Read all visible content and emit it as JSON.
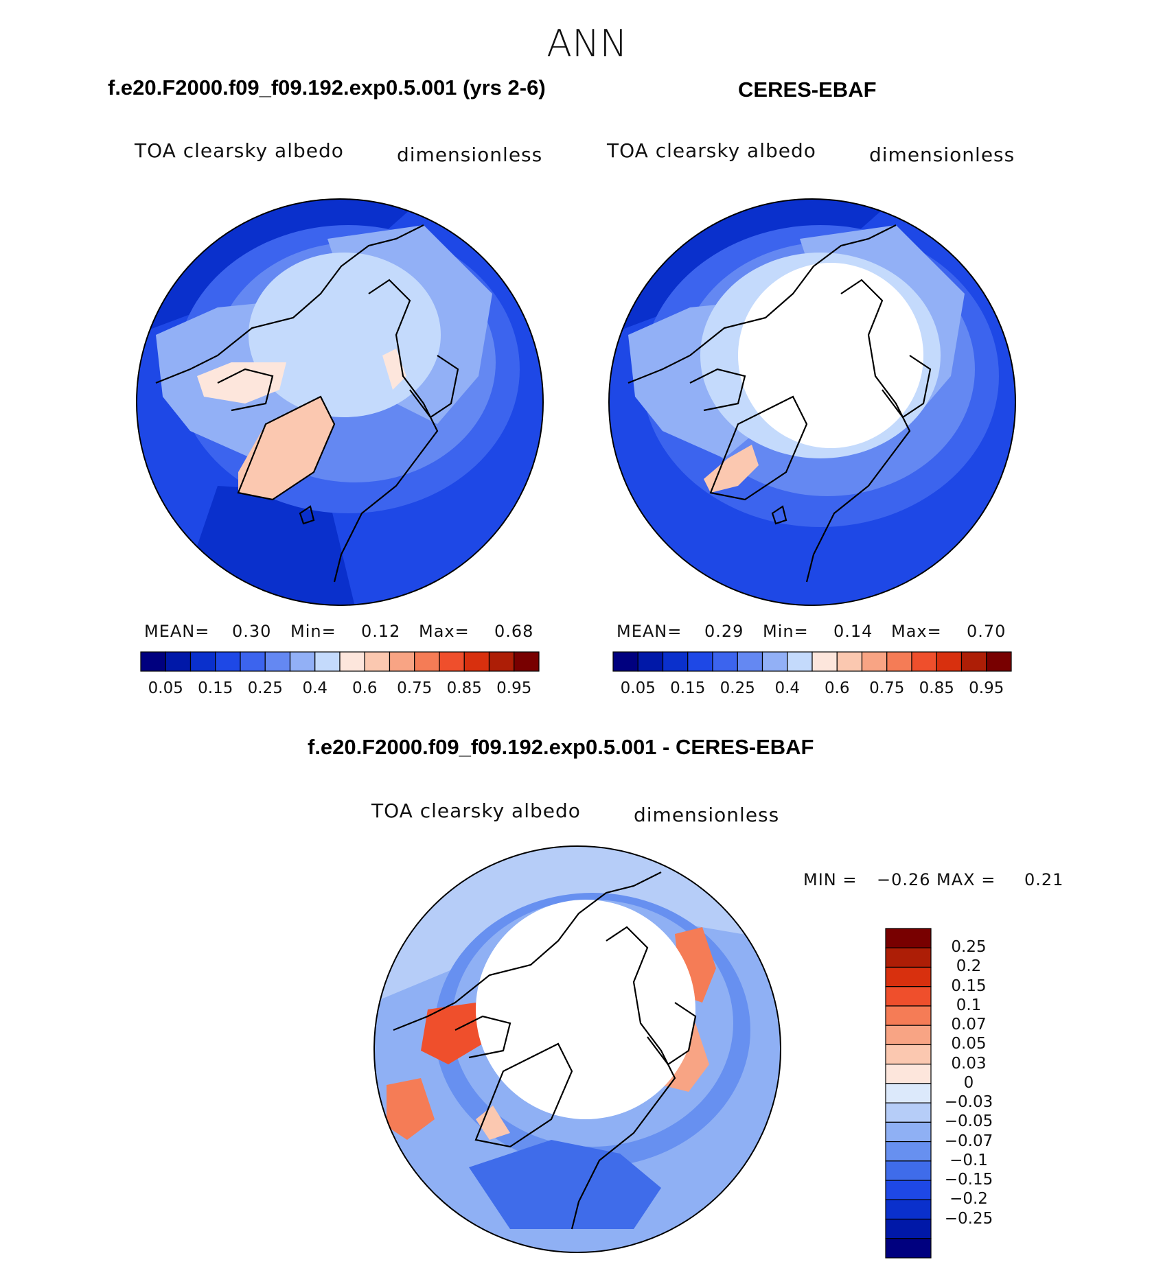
{
  "season": "ANN",
  "panels": [
    {
      "case": "f.e20.F2000.f09_f09.192.exp0.5.001 (yrs 2-6)",
      "variable": "TOA clearsky albedo",
      "units": "dimensionless",
      "stats": {
        "mean_label": "MEAN=",
        "mean": "0.30",
        "min_label": "Min=",
        "min": "0.12",
        "max_label": "Max=",
        "max": "0.68"
      }
    },
    {
      "case": "CERES-EBAF",
      "variable": "TOA clearsky albedo",
      "units": "dimensionless",
      "stats": {
        "mean_label": "MEAN=",
        "mean": "0.29",
        "min_label": "Min=",
        "min": "0.14",
        "max_label": "Max=",
        "max": "0.70"
      }
    }
  ],
  "diff_panel": {
    "title": "f.e20.F2000.f09_f09.192.exp0.5.001 - CERES-EBAF",
    "variable": "TOA clearsky albedo",
    "units": "dimensionless",
    "stats": {
      "min_label": "MIN =",
      "min": "−0.26",
      "max_label": "MAX =",
      "max": "0.21"
    }
  },
  "colors": {
    "abs_scale": [
      "#00007f",
      "#0018a8",
      "#0a30cc",
      "#1e48e6",
      "#3c64ee",
      "#6488f2",
      "#92b0f6",
      "#c4dafc",
      "#fde6dc",
      "#fbc8b0",
      "#f8a484",
      "#f57c56",
      "#ef4f2c",
      "#d8300e",
      "#ad1e06",
      "#780000"
    ],
    "diff_scale": [
      "#780000",
      "#ad1e06",
      "#d8300e",
      "#ef4f2c",
      "#f57c56",
      "#f8a484",
      "#fbc8b0",
      "#fde6dc",
      "#dce9fb",
      "#b6cdf8",
      "#8fb0f4",
      "#6790f0",
      "#3f6cea",
      "#1e48e6",
      "#0a30cc",
      "#0018a8",
      "#00007f"
    ],
    "ocean_deep": "#1e48e6",
    "ocean_mid": "#3c64ee",
    "land_light": "#92b0f6",
    "ice": "#c4dafc",
    "greenland_warm": "#fbc8b0",
    "missing": "#ffffff"
  },
  "chart_data": [
    {
      "type": "heatmap",
      "title": "f.e20.F2000.f09_f09.192.exp0.5.001 (yrs 2-6)",
      "subtitle_left": "TOA clearsky albedo",
      "subtitle_right": "dimensionless",
      "projection": "north polar stereographic",
      "colorbar_levels": [
        "0.05",
        "0.15",
        "0.25",
        "0.4",
        "0.6",
        "0.75",
        "0.85",
        "0.95"
      ],
      "mean": 0.3,
      "min": 0.12,
      "max": 0.68
    },
    {
      "type": "heatmap",
      "title": "CERES-EBAF",
      "subtitle_left": "TOA clearsky albedo",
      "subtitle_right": "dimensionless",
      "projection": "north polar stereographic",
      "colorbar_levels": [
        "0.05",
        "0.15",
        "0.25",
        "0.4",
        "0.6",
        "0.75",
        "0.85",
        "0.95"
      ],
      "mean": 0.29,
      "min": 0.14,
      "max": 0.7
    },
    {
      "type": "heatmap",
      "title": "f.e20.F2000.f09_f09.192.exp0.5.001 - CERES-EBAF",
      "subtitle_left": "TOA clearsky albedo",
      "subtitle_right": "dimensionless",
      "projection": "north polar stereographic",
      "colorbar_levels": [
        "0.25",
        "0.2",
        "0.15",
        "0.1",
        "0.07",
        "0.05",
        "0.03",
        "0",
        "−0.03",
        "−0.05",
        "−0.07",
        "−0.1",
        "−0.15",
        "−0.2",
        "−0.25"
      ],
      "min": -0.26,
      "max": 0.21
    }
  ]
}
